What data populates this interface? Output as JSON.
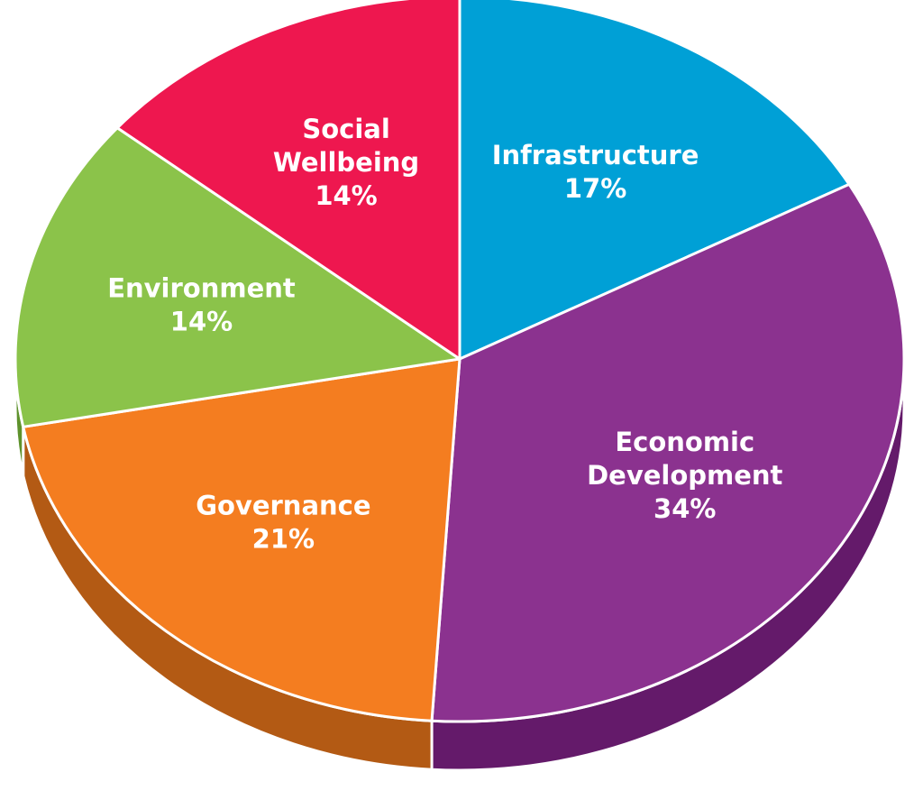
{
  "chart_data": {
    "type": "pie",
    "style": "3d-tilted",
    "start_angle_deg": 90,
    "direction": "clockwise",
    "legend": "none",
    "slices": [
      {
        "label_lines": [
          "Infrastructure"
        ],
        "value": 17,
        "value_label": "17%",
        "color": "#00A0D6",
        "side_color": "#007CA8"
      },
      {
        "label_lines": [
          "Economic",
          "Development"
        ],
        "value": 34,
        "value_label": "34%",
        "color": "#8B328F",
        "side_color": "#641A6A"
      },
      {
        "label_lines": [
          "Governance"
        ],
        "value": 21,
        "value_label": "21%",
        "color": "#F47D20",
        "side_color": "#B35A14"
      },
      {
        "label_lines": [
          "Environment"
        ],
        "value": 14,
        "value_label": "14%",
        "color": "#8BC34A",
        "side_color": "#5E922C"
      },
      {
        "label_lines": [
          "Social",
          "Wellbeing"
        ],
        "value": 14,
        "value_label": "14%",
        "color": "#EE174F",
        "side_color": "#B00F39"
      }
    ]
  }
}
